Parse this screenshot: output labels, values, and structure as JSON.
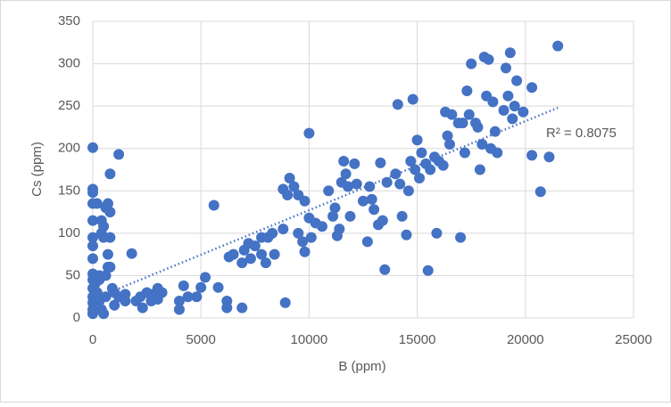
{
  "chart_data": {
    "type": "scatter",
    "xlabel": "B (ppm)",
    "ylabel": "Cs (ppm)",
    "color": "#4472c4",
    "xlim": [
      0,
      25000
    ],
    "xticks": [
      0,
      5000,
      10000,
      15000,
      20000,
      25000
    ],
    "ylim": [
      0,
      350
    ],
    "yticks": [
      0,
      50,
      100,
      150,
      200,
      250,
      300,
      350
    ],
    "grid": true,
    "x": [
      0,
      0,
      0,
      0,
      0,
      0,
      0,
      0,
      0,
      0,
      0,
      0,
      0,
      0,
      0,
      100,
      200,
      300,
      400,
      500,
      200,
      400,
      400,
      500,
      500,
      600,
      700,
      800,
      800,
      800,
      700,
      700,
      800,
      600,
      300,
      300,
      1200,
      1800,
      1000,
      1200,
      1500,
      2000,
      2200,
      2500,
      2800,
      3000,
      3200,
      2300,
      3000,
      2700,
      1500,
      1000,
      600,
      900,
      4000,
      4000,
      4200,
      4400,
      4800,
      5000,
      5200,
      5600,
      5800,
      6200,
      6200,
      6500,
      6300,
      6900,
      6900,
      7000,
      7200,
      7300,
      7500,
      7800,
      7800,
      8000,
      8100,
      8300,
      8400,
      8800,
      8800,
      8900,
      9100,
      9000,
      9300,
      9500,
      9500,
      9700,
      9800,
      9800,
      10000,
      10000,
      10100,
      10300,
      10600,
      10900,
      11100,
      11200,
      11300,
      11400,
      11500,
      11600,
      11700,
      11800,
      11900,
      12100,
      12200,
      12500,
      12700,
      12800,
      12900,
      13000,
      13200,
      13300,
      13400,
      13500,
      13600,
      14000,
      14100,
      14200,
      14300,
      14500,
      14600,
      14700,
      14800,
      14900,
      15000,
      15100,
      15200,
      15400,
      15500,
      15600,
      15800,
      15900,
      16000,
      16200,
      16300,
      16400,
      16500,
      16600,
      16900,
      17000,
      17100,
      17200,
      17300,
      17400,
      17500,
      17700,
      17800,
      17900,
      18000,
      18100,
      18200,
      18300,
      18400,
      18500,
      18600,
      18700,
      19000,
      19100,
      19200,
      19300,
      19400,
      19500,
      19600,
      19900,
      20300,
      20300,
      20700,
      21100,
      21500
    ],
    "values": [
      201,
      152,
      148,
      135,
      115,
      95,
      85,
      70,
      52,
      45,
      35,
      25,
      18,
      10,
      5,
      40,
      30,
      20,
      10,
      5,
      135,
      115,
      100,
      95,
      108,
      130,
      135,
      125,
      170,
      95,
      75,
      60,
      60,
      50,
      50,
      45,
      193,
      76,
      30,
      25,
      28,
      20,
      25,
      30,
      28,
      35,
      30,
      12,
      22,
      20,
      20,
      15,
      25,
      35,
      20,
      10,
      38,
      25,
      25,
      36,
      48,
      133,
      36,
      20,
      12,
      75,
      72,
      12,
      65,
      80,
      88,
      70,
      85,
      75,
      95,
      65,
      95,
      100,
      75,
      105,
      152,
      18,
      165,
      145,
      155,
      145,
      100,
      90,
      138,
      78,
      218,
      118,
      95,
      112,
      108,
      150,
      120,
      130,
      97,
      105,
      160,
      185,
      170,
      155,
      120,
      182,
      158,
      138,
      90,
      155,
      140,
      128,
      110,
      183,
      115,
      57,
      160,
      170,
      252,
      158,
      120,
      98,
      150,
      185,
      258,
      175,
      210,
      165,
      195,
      182,
      56,
      175,
      190,
      100,
      185,
      180,
      243,
      215,
      205,
      240,
      230,
      95,
      230,
      195,
      268,
      240,
      300,
      230,
      225,
      175,
      205,
      308,
      262,
      305,
      200,
      255,
      220,
      195,
      245,
      295,
      262,
      313,
      235,
      250,
      280,
      243,
      272,
      192,
      149,
      190,
      321
    ],
    "trendline": {
      "x": [
        0,
        21500
      ],
      "values": [
        22,
        248
      ],
      "label": "R² = 0.8075"
    }
  }
}
